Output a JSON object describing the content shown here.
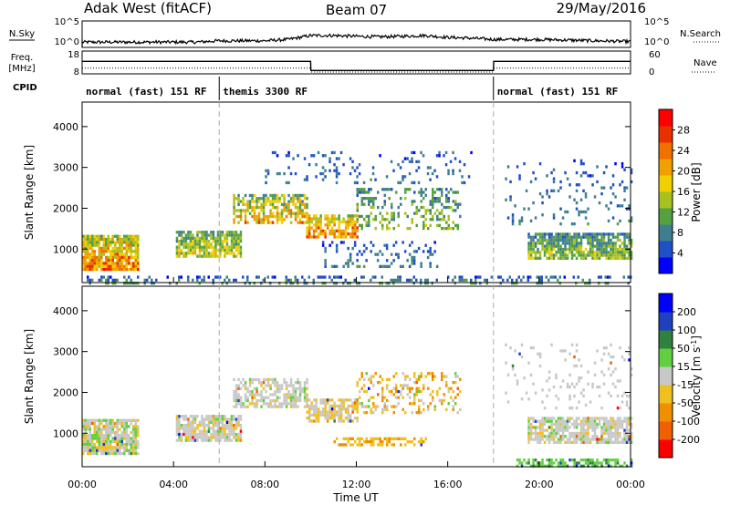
{
  "header": {
    "station": "Adak West (fitACF)",
    "beam": "Beam 07",
    "date": "29/May/2016"
  },
  "top_panels": {
    "nsky_label": "N.Sky",
    "nsky_ticks": [
      "10^5",
      "10^0"
    ],
    "nsearch_label": "N.Search",
    "nsearch_ticks": [
      "10^5",
      "10^0"
    ],
    "freq_label": "Freq.",
    "freq_unit": "[MHz]",
    "freq_ticks": [
      "18",
      "8"
    ],
    "nave_label": "Nave",
    "nave_ticks": [
      "60",
      "0"
    ],
    "cpid_label": "CPID",
    "cpid_segments": [
      {
        "name": "normal (fast) 151 RF",
        "start_hour": 0,
        "end_hour": 6
      },
      {
        "name": "themis 3300 RF",
        "start_hour": 6,
        "end_hour": 18
      },
      {
        "name": "normal (fast) 151 RF",
        "start_hour": 18,
        "end_hour": 24
      }
    ]
  },
  "colorbars": {
    "power": {
      "label": "Power [dB]",
      "ticks": [
        "4",
        "8",
        "12",
        "16",
        "20",
        "24",
        "28"
      ],
      "colors": [
        "#0000ff",
        "#2050c8",
        "#3e7e8e",
        "#55a040",
        "#a8c020",
        "#f0d000",
        "#f0a000",
        "#f07000",
        "#e83000",
        "#ff0000"
      ]
    },
    "velocity": {
      "label_main": "Velocity [m s",
      "label_sup": "-1",
      "label_end": "]",
      "ticks": [
        "-200",
        "-100",
        "-50",
        "-15",
        "15",
        "50",
        "100",
        "200"
      ],
      "colors": [
        "#ff0000",
        "#f06000",
        "#f09000",
        "#f0c020",
        "#c8c8c8",
        "#60d040",
        "#308040",
        "#2040c0",
        "#0000ff"
      ]
    }
  },
  "chart_data": [
    {
      "type": "line",
      "panel": "N.Sky / N.Search",
      "x_hours": [
        0,
        1,
        2,
        3,
        4,
        5,
        6,
        7,
        8,
        9,
        10,
        11,
        12,
        13,
        14,
        15,
        16,
        17,
        18,
        19,
        20,
        21,
        22,
        23,
        24
      ],
      "series": [
        {
          "values": [
            0.2,
            0.2,
            0.2,
            0.2,
            0.2,
            0.2,
            0.25,
            0.25,
            0.25,
            0.3,
            0.45,
            0.45,
            0.42,
            0.4,
            0.42,
            0.45,
            0.38,
            0.35,
            0.3,
            0.3,
            0.3,
            0.28,
            0.26,
            0.24,
            0.22
          ]
        }
      ],
      "ylim": [
        0,
        1
      ]
    },
    {
      "type": "line",
      "panel": "Freq. / Nave",
      "x_hours": [
        0,
        10,
        10.01,
        18,
        18.01,
        24
      ],
      "series": [
        {
          "values": [
            13.5,
            13.5,
            9.5,
            9.5,
            13.5,
            13.5
          ]
        },
        {
          "values": [
            10.5,
            10.5,
            8.8,
            8.8,
            10.5,
            10.5
          ]
        }
      ],
      "ylim": [
        8,
        18
      ]
    },
    {
      "type": "heatmap",
      "variable": "Power",
      "xlabel": "",
      "ylabel": "Slant Range [km]",
      "xlim_hours": [
        0,
        24
      ],
      "ylim": [
        180,
        4600
      ],
      "yticks": [
        "1000",
        "2000",
        "3000",
        "4000"
      ],
      "regions": [
        {
          "x0": 0.0,
          "x1": 2.4,
          "y0": 500,
          "y1": 1350,
          "pmin": 10,
          "pmax": 30,
          "density": 0.9
        },
        {
          "x0": 4.1,
          "x1": 6.9,
          "y0": 850,
          "y1": 1450,
          "pmin": 8,
          "pmax": 22,
          "density": 0.85
        },
        {
          "x0": 6.6,
          "x1": 9.8,
          "y0": 1650,
          "y1": 2350,
          "pmin": 8,
          "pmax": 28,
          "density": 0.6
        },
        {
          "x0": 9.8,
          "x1": 12.0,
          "y0": 1300,
          "y1": 1850,
          "pmin": 12,
          "pmax": 30,
          "density": 0.75
        },
        {
          "x0": 12.0,
          "x1": 16.5,
          "y0": 1500,
          "y1": 2500,
          "pmin": 6,
          "pmax": 18,
          "density": 0.35
        },
        {
          "x0": 10.5,
          "x1": 15.5,
          "y0": 600,
          "y1": 1200,
          "pmin": 4,
          "pmax": 12,
          "density": 0.2
        },
        {
          "x0": 8.0,
          "x1": 17.0,
          "y0": 2600,
          "y1": 3400,
          "pmin": 4,
          "pmax": 12,
          "density": 0.12
        },
        {
          "x0": 19.5,
          "x1": 24.0,
          "y0": 750,
          "y1": 1400,
          "pmin": 6,
          "pmax": 20,
          "density": 0.8
        },
        {
          "x0": 18.5,
          "x1": 24.0,
          "y0": 1600,
          "y1": 3200,
          "pmin": 4,
          "pmax": 12,
          "density": 0.12
        },
        {
          "x0": 0.0,
          "x1": 24.0,
          "y0": 200,
          "y1": 350,
          "pmin": 4,
          "pmax": 14,
          "density": 0.3
        }
      ]
    },
    {
      "type": "heatmap",
      "variable": "Velocity",
      "xlabel": "Time UT",
      "ylabel": "Slant Range [km]",
      "xlim_hours": [
        0,
        24
      ],
      "ylim": [
        180,
        4600
      ],
      "yticks": [
        "1000",
        "2000",
        "3000",
        "4000"
      ],
      "xticks": [
        "00:00",
        "04:00",
        "08:00",
        "12:00",
        "16:00",
        "20:00",
        "00:00"
      ],
      "regions": [
        {
          "x0": 0.0,
          "x1": 2.4,
          "y0": 500,
          "y1": 1350,
          "vmin": -30,
          "vmax": 30,
          "density": 0.9
        },
        {
          "x0": 4.1,
          "x1": 6.9,
          "y0": 850,
          "y1": 1450,
          "vmin": -20,
          "vmax": 20,
          "density": 0.85
        },
        {
          "x0": 6.6,
          "x1": 9.8,
          "y0": 1650,
          "y1": 2350,
          "vmin": -20,
          "vmax": 20,
          "density": 0.6
        },
        {
          "x0": 9.8,
          "x1": 12.0,
          "y0": 1300,
          "y1": 1850,
          "vmin": -40,
          "vmax": 15,
          "density": 0.75
        },
        {
          "x0": 11.0,
          "x1": 15.0,
          "y0": 700,
          "y1": 900,
          "vmin": -60,
          "vmax": -30,
          "density": 0.6
        },
        {
          "x0": 12.0,
          "x1": 16.5,
          "y0": 1500,
          "y1": 2500,
          "vmin": -80,
          "vmax": 20,
          "density": 0.3
        },
        {
          "x0": 19.5,
          "x1": 24.0,
          "y0": 750,
          "y1": 1400,
          "vmin": -20,
          "vmax": 20,
          "density": 0.8
        },
        {
          "x0": 18.5,
          "x1": 24.0,
          "y0": 1600,
          "y1": 3200,
          "vmin": -15,
          "vmax": 15,
          "density": 0.12
        },
        {
          "x0": 19.0,
          "x1": 24.0,
          "y0": 200,
          "y1": 380,
          "vmin": 20,
          "vmax": 60,
          "density": 0.55
        }
      ]
    }
  ]
}
